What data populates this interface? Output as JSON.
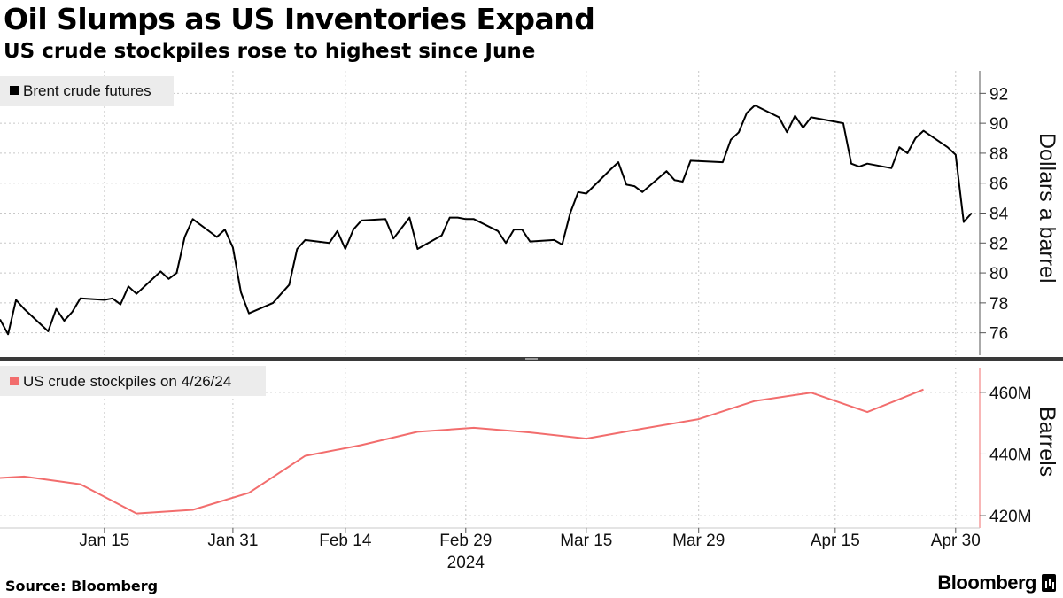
{
  "header": {
    "title": "Oil Slumps as US Inventories Expand",
    "subtitle": "US crude stockpiles rose to highest since June"
  },
  "footer": {
    "source": "Source: Bloomberg",
    "brand": "Bloomberg"
  },
  "colors": {
    "brent": "#000000",
    "stockpiles": "#f26d6d",
    "legend_bg": "#ececec",
    "grid": "#c8c8c8"
  },
  "chart_data": [
    {
      "type": "line",
      "legend": "Brent crude futures",
      "ylabel": "Dollars a barrel",
      "ylim": [
        74.5,
        93.5
      ],
      "yticks": [
        76,
        78,
        80,
        82,
        84,
        86,
        88,
        90,
        92
      ],
      "series": [
        {
          "name": "Brent crude futures",
          "x": [
            "2024-01-02",
            "2024-01-03",
            "2024-01-04",
            "2024-01-05",
            "2024-01-08",
            "2024-01-09",
            "2024-01-10",
            "2024-01-11",
            "2024-01-12",
            "2024-01-15",
            "2024-01-16",
            "2024-01-17",
            "2024-01-18",
            "2024-01-19",
            "2024-01-22",
            "2024-01-23",
            "2024-01-24",
            "2024-01-25",
            "2024-01-26",
            "2024-01-29",
            "2024-01-30",
            "2024-01-31",
            "2024-02-01",
            "2024-02-02",
            "2024-02-05",
            "2024-02-06",
            "2024-02-07",
            "2024-02-08",
            "2024-02-09",
            "2024-02-12",
            "2024-02-13",
            "2024-02-14",
            "2024-02-15",
            "2024-02-16",
            "2024-02-19",
            "2024-02-20",
            "2024-02-21",
            "2024-02-22",
            "2024-02-23",
            "2024-02-26",
            "2024-02-27",
            "2024-02-28",
            "2024-02-29",
            "2024-03-01",
            "2024-03-04",
            "2024-03-05",
            "2024-03-06",
            "2024-03-07",
            "2024-03-08",
            "2024-03-11",
            "2024-03-12",
            "2024-03-13",
            "2024-03-14",
            "2024-03-15",
            "2024-03-18",
            "2024-03-19",
            "2024-03-20",
            "2024-03-21",
            "2024-03-22",
            "2024-03-25",
            "2024-03-26",
            "2024-03-27",
            "2024-03-28",
            "2024-04-01",
            "2024-04-02",
            "2024-04-03",
            "2024-04-04",
            "2024-04-05",
            "2024-04-08",
            "2024-04-09",
            "2024-04-10",
            "2024-04-11",
            "2024-04-12",
            "2024-04-15",
            "2024-04-16",
            "2024-04-17",
            "2024-04-18",
            "2024-04-19",
            "2024-04-22",
            "2024-04-23",
            "2024-04-24",
            "2024-04-25",
            "2024-04-26",
            "2024-04-29",
            "2024-04-30",
            "2024-05-01",
            "2024-05-02"
          ],
          "values": [
            76.9,
            75.9,
            78.2,
            77.6,
            76.1,
            77.6,
            76.8,
            77.4,
            78.3,
            78.2,
            78.3,
            77.9,
            79.1,
            78.6,
            80.1,
            79.6,
            80.0,
            82.4,
            83.6,
            82.4,
            82.9,
            81.7,
            78.7,
            77.3,
            78.0,
            78.6,
            79.2,
            81.6,
            82.2,
            82.0,
            82.8,
            81.6,
            82.9,
            83.5,
            83.6,
            82.3,
            83.0,
            83.7,
            81.6,
            82.5,
            83.7,
            83.7,
            83.6,
            83.6,
            82.8,
            82.0,
            82.9,
            82.9,
            82.1,
            82.2,
            81.9,
            84.0,
            85.4,
            85.3,
            86.9,
            87.4,
            85.9,
            85.8,
            85.4,
            86.8,
            86.2,
            86.1,
            87.5,
            87.4,
            88.9,
            89.4,
            90.7,
            91.2,
            90.4,
            89.4,
            90.5,
            89.7,
            90.4,
            90.1,
            90.0,
            87.3,
            87.1,
            87.3,
            87.0,
            88.4,
            88.0,
            89.0,
            89.5,
            88.4,
            87.9,
            83.4,
            84.0
          ]
        }
      ]
    },
    {
      "type": "line",
      "legend": "US crude stockpiles on 4/26/24",
      "ylabel": "Barrels",
      "ylim": [
        416,
        468
      ],
      "yticks": [
        420,
        440,
        460
      ],
      "ytick_labels": [
        "420M",
        "440M",
        "460M"
      ],
      "series": [
        {
          "name": "US crude stockpiles",
          "x": [
            "2023-12-29",
            "2024-01-05",
            "2024-01-12",
            "2024-01-19",
            "2024-01-26",
            "2024-02-02",
            "2024-02-09",
            "2024-02-16",
            "2024-02-23",
            "2024-03-01",
            "2024-03-08",
            "2024-03-15",
            "2024-03-22",
            "2024-03-29",
            "2024-04-05",
            "2024-04-12",
            "2024-04-19",
            "2024-04-26"
          ],
          "values": [
            431.6,
            432.7,
            430.2,
            420.7,
            421.9,
            427.4,
            439.4,
            442.9,
            447.2,
            448.5,
            447.0,
            445.0,
            448.2,
            451.3,
            457.2,
            459.9,
            453.6,
            460.9
          ]
        }
      ]
    }
  ],
  "x_axis": {
    "ticks": [
      {
        "date": "2024-01-15",
        "label": "Jan 15"
      },
      {
        "date": "2024-01-31",
        "label": "Jan 31"
      },
      {
        "date": "2024-02-14",
        "label": "Feb 14"
      },
      {
        "date": "2024-02-29",
        "label": "Feb 29"
      },
      {
        "date": "2024-03-15",
        "label": "Mar 15"
      },
      {
        "date": "2024-03-29",
        "label": "Mar 29"
      },
      {
        "date": "2024-04-15",
        "label": "Apr 15"
      },
      {
        "date": "2024-04-30",
        "label": "Apr 30"
      }
    ],
    "year_label": "2024",
    "year_anchor": "2024-02-29",
    "start": "2024-01-02",
    "end": "2024-05-03"
  }
}
